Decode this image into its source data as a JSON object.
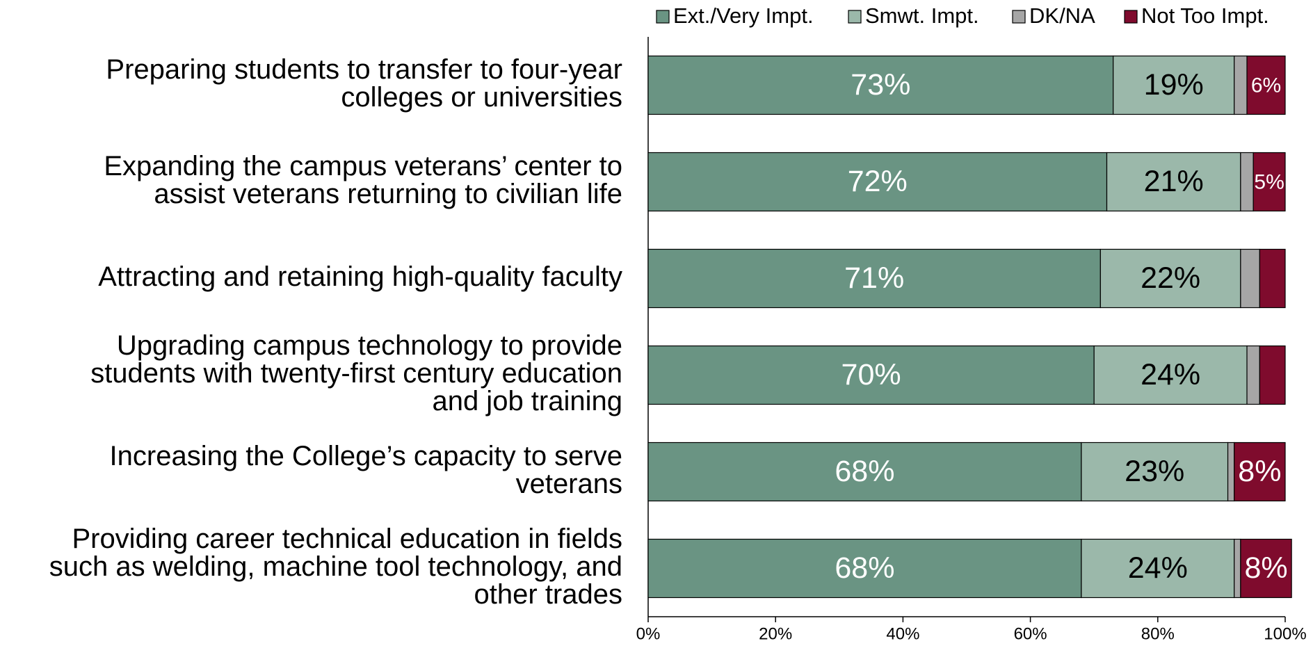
{
  "chart_data": {
    "type": "stacked_barh",
    "categories": [
      [
        "Preparing students to transfer to four-year",
        "colleges or universities"
      ],
      [
        "Expanding the campus veterans’ center to",
        "assist veterans returning to civilian life"
      ],
      [
        "Attracting and retaining high-quality faculty"
      ],
      [
        "Upgrading campus technology to provide",
        "students with twenty-first century education",
        "and job training"
      ],
      [
        "Increasing the College’s capacity to serve",
        "veterans"
      ],
      [
        "Providing career technical education in fields",
        "such as welding, machine tool technology, and",
        "other trades"
      ]
    ],
    "series": [
      {
        "name": "Ext./Very Impt.",
        "color": "#6a9483",
        "values": [
          73,
          72,
          71,
          70,
          68,
          68
        ],
        "value_labels": [
          "73%",
          "72%",
          "71%",
          "70%",
          "68%",
          "68%"
        ]
      },
      {
        "name": "Smwt. Impt.",
        "color": "#9bb8aa",
        "values": [
          19,
          21,
          22,
          24,
          23,
          24
        ],
        "value_labels": [
          "19%",
          "21%",
          "22%",
          "24%",
          "23%",
          "24%"
        ]
      },
      {
        "name": "DK/NA",
        "color": "#a6a6a6",
        "values": [
          2,
          2,
          3,
          2,
          1,
          1
        ]
      },
      {
        "name": "Not Too Impt.",
        "color": "#7f0b2d",
        "values": [
          6,
          5,
          4,
          4,
          8,
          8
        ],
        "value_labels": [
          "6%",
          "5%",
          null,
          null,
          "8%",
          "8%"
        ]
      }
    ],
    "xlim": [
      0,
      100
    ],
    "xticks": [
      {
        "value": 0,
        "label": "0%"
      },
      {
        "value": 20,
        "label": "20%"
      },
      {
        "value": 40,
        "label": "40%"
      },
      {
        "value": 60,
        "label": "60%"
      },
      {
        "value": 80,
        "label": "80%"
      },
      {
        "value": 100,
        "label": "100%"
      }
    ],
    "legend": "top"
  }
}
